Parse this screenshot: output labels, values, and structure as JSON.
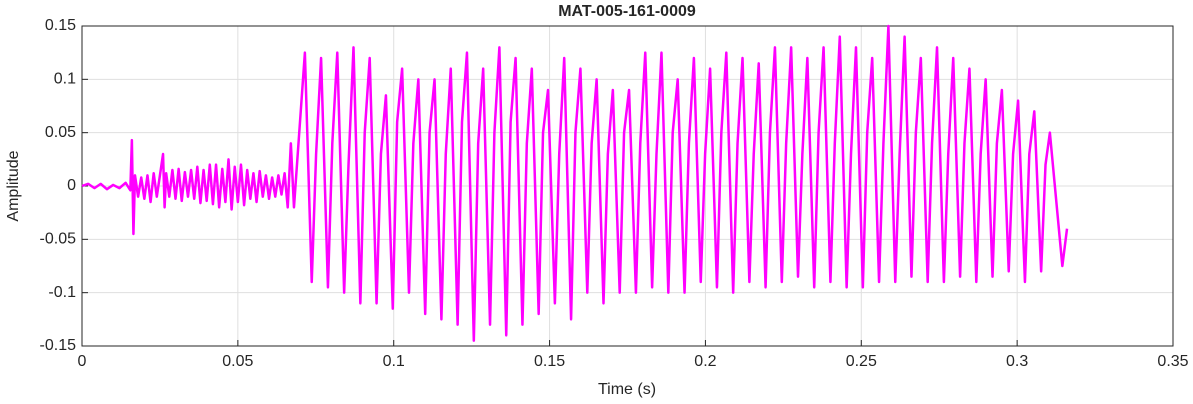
{
  "chart_data": {
    "type": "line",
    "title": "MAT-005-161-0009",
    "xlabel": "Time (s)",
    "ylabel": "Amplitude",
    "color": "#ff00ff",
    "grid": true,
    "xlim": [
      0,
      0.35
    ],
    "xticks": [
      0,
      0.05,
      0.1,
      0.15,
      0.2,
      0.25,
      0.3,
      0.35
    ],
    "ylim": [
      -0.15,
      0.15
    ],
    "yticks": [
      -0.15,
      -0.1,
      -0.05,
      0,
      0.05,
      0.1,
      0.15
    ],
    "x": [
      0,
      0.002,
      0.004,
      0.006,
      0.008,
      0.01,
      0.012,
      0.014,
      0.0155,
      0.016,
      0.0165,
      0.017,
      0.018,
      0.019,
      0.02,
      0.021,
      0.022,
      0.023,
      0.024,
      0.025,
      0.026,
      0.0265,
      0.027,
      0.028,
      0.029,
      0.03,
      0.031,
      0.032,
      0.033,
      0.034,
      0.035,
      0.036,
      0.037,
      0.038,
      0.039,
      0.04,
      0.041,
      0.042,
      0.043,
      0.044,
      0.045,
      0.046,
      0.047,
      0.048,
      0.049,
      0.05,
      0.051,
      0.052,
      0.053,
      0.054,
      0.055,
      0.056,
      0.057,
      0.058,
      0.059,
      0.06,
      0.061,
      0.062,
      0.063,
      0.064,
      0.065,
      0.066,
      0.067,
      0.068,
      0.0715,
      0.0737,
      0.0751,
      0.0767,
      0.0789,
      0.0803,
      0.0819,
      0.0841,
      0.0855,
      0.0871,
      0.0893,
      0.0907,
      0.0923,
      0.0945,
      0.0959,
      0.0975,
      0.0997,
      0.1011,
      0.1027,
      0.1049,
      0.1063,
      0.1079,
      0.1101,
      0.1115,
      0.1131,
      0.1153,
      0.1167,
      0.1183,
      0.1205,
      0.1219,
      0.1235,
      0.1257,
      0.1271,
      0.1287,
      0.1309,
      0.1323,
      0.1339,
      0.1361,
      0.1375,
      0.1391,
      0.1413,
      0.1427,
      0.1443,
      0.1465,
      0.1479,
      0.1495,
      0.1517,
      0.1531,
      0.1547,
      0.1569,
      0.1583,
      0.1599,
      0.1621,
      0.1635,
      0.1651,
      0.1673,
      0.1687,
      0.1703,
      0.1725,
      0.1739,
      0.1755,
      0.1777,
      0.1791,
      0.1807,
      0.1829,
      0.1843,
      0.1859,
      0.1881,
      0.1895,
      0.1911,
      0.1933,
      0.1947,
      0.1963,
      0.1985,
      0.1999,
      0.2015,
      0.2037,
      0.2051,
      0.2067,
      0.2089,
      0.2103,
      0.2119,
      0.2141,
      0.2155,
      0.2171,
      0.2193,
      0.2207,
      0.2223,
      0.2245,
      0.2259,
      0.2275,
      0.2297,
      0.2311,
      0.2327,
      0.2349,
      0.2363,
      0.2379,
      0.2401,
      0.2415,
      0.2431,
      0.2453,
      0.2467,
      0.2483,
      0.2505,
      0.2519,
      0.2535,
      0.2557,
      0.2571,
      0.2587,
      0.2609,
      0.2623,
      0.2639,
      0.2661,
      0.2675,
      0.2691,
      0.2713,
      0.2727,
      0.2743,
      0.2765,
      0.2779,
      0.2795,
      0.2817,
      0.2831,
      0.2847,
      0.2869,
      0.2883,
      0.2899,
      0.2921,
      0.2935,
      0.2951,
      0.2973,
      0.2987,
      0.3003,
      0.3025,
      0.3039,
      0.3055,
      0.3077,
      0.3091,
      0.3105,
      0.3145,
      0.316
    ],
    "values": [
      0,
      0.002,
      -0.002,
      0.002,
      -0.003,
      0.001,
      -0.002,
      0.003,
      -0.004,
      0.043,
      -0.045,
      0.01,
      -0.01,
      0.008,
      -0.012,
      0.01,
      -0.015,
      0.012,
      -0.01,
      0.01,
      0.03,
      -0.02,
      0.012,
      -0.01,
      0.015,
      -0.012,
      0.016,
      -0.014,
      0.013,
      -0.01,
      0.015,
      -0.012,
      0.018,
      -0.016,
      0.015,
      -0.014,
      0.02,
      -0.017,
      0.02,
      -0.02,
      0.016,
      -0.015,
      0.025,
      -0.022,
      0.018,
      -0.015,
      0.02,
      -0.018,
      0.015,
      -0.012,
      0.012,
      -0.015,
      0.014,
      -0.01,
      0.01,
      -0.012,
      0.008,
      -0.01,
      0.01,
      -0.008,
      0.012,
      -0.02,
      0.04,
      -0.02,
      0.125,
      -0.09,
      0.03,
      0.12,
      -0.095,
      0.04,
      0.125,
      -0.1,
      0.02,
      0.13,
      -0.11,
      0.05,
      0.12,
      -0.11,
      0.03,
      0.085,
      -0.115,
      0.06,
      0.11,
      -0.1,
      0.04,
      0.1,
      -0.12,
      0.05,
      0.1,
      -0.125,
      0.03,
      0.11,
      -0.13,
      0.06,
      0.125,
      -0.145,
      0.04,
      0.11,
      -0.13,
      0.05,
      0.13,
      -0.14,
      0.06,
      0.12,
      -0.13,
      0.04,
      0.11,
      -0.12,
      0.05,
      0.09,
      -0.11,
      0.03,
      0.12,
      -0.125,
      0.05,
      0.11,
      -0.1,
      0.04,
      0.1,
      -0.11,
      0.03,
      0.09,
      -0.1,
      0.05,
      0.09,
      -0.1,
      0.04,
      0.125,
      -0.095,
      0.03,
      0.125,
      -0.1,
      0.05,
      0.1,
      -0.1,
      0.04,
      0.12,
      -0.09,
      0.03,
      0.11,
      -0.095,
      0.05,
      0.125,
      -0.1,
      0.04,
      0.12,
      -0.09,
      0.03,
      0.115,
      -0.095,
      0.05,
      0.13,
      -0.09,
      0.04,
      0.13,
      -0.085,
      0.03,
      0.12,
      -0.095,
      0.05,
      0.13,
      -0.09,
      0.04,
      0.14,
      -0.095,
      0.03,
      0.13,
      -0.095,
      0.05,
      0.12,
      -0.09,
      0.04,
      0.15,
      -0.09,
      0.03,
      0.14,
      -0.085,
      0.05,
      0.12,
      -0.09,
      0.04,
      0.13,
      -0.09,
      0.03,
      0.12,
      -0.085,
      0.04,
      0.11,
      -0.09,
      0.03,
      0.1,
      -0.085,
      0.04,
      0.09,
      -0.08,
      0.03,
      0.08,
      -0.09,
      0.03,
      0.07,
      -0.08,
      0.02,
      0.05,
      -0.075,
      -0.04
    ]
  }
}
